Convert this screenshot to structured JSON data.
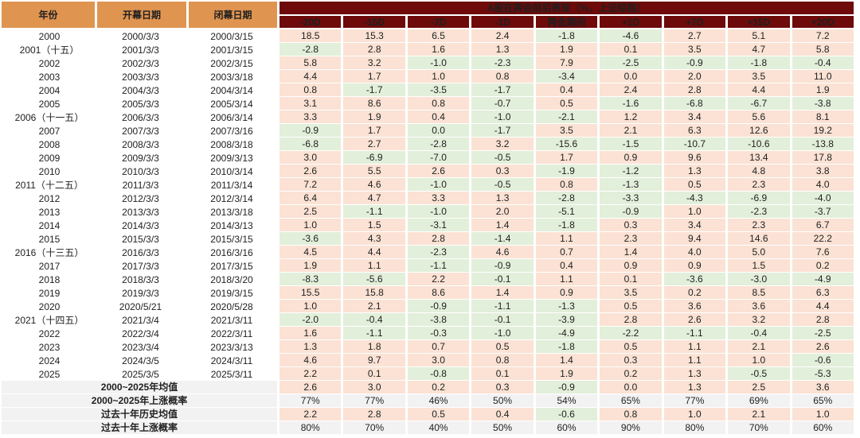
{
  "chart_data": {
    "type": "table",
    "title": "A股在两会前后表现（%，上证综指）",
    "left_columns": [
      "年份",
      "开幕日期",
      "闭幕日期"
    ],
    "period_columns": [
      "-20D",
      "-15D",
      "-7D",
      "-1D",
      "两会期间",
      "+1D",
      "+7D",
      "+15D",
      "+20D"
    ],
    "rows": [
      {
        "year": "2000",
        "open": "2000/3/3",
        "close": "2000/3/15",
        "values": [
          "18.5",
          "15.3",
          "6.5",
          "2.4",
          "-1.8",
          "-4.6",
          "2.7",
          "5.1",
          "7.2"
        ]
      },
      {
        "year": "2001（十五）",
        "open": "2001/3/3",
        "close": "2001/3/15",
        "values": [
          "-2.8",
          "2.8",
          "1.6",
          "1.3",
          "1.9",
          "0.1",
          "3.5",
          "4.7",
          "5.8"
        ]
      },
      {
        "year": "2002",
        "open": "2002/3/3",
        "close": "2002/3/15",
        "values": [
          "5.8",
          "3.2",
          "-1.0",
          "-2.3",
          "7.9",
          "-2.5",
          "-0.9",
          "-1.8",
          "-0.4"
        ]
      },
      {
        "year": "2003",
        "open": "2003/3/3",
        "close": "2003/3/18",
        "values": [
          "4.4",
          "1.7",
          "1.0",
          "0.8",
          "-3.4",
          "0.0",
          "2.0",
          "3.5",
          "11.0"
        ]
      },
      {
        "year": "2004",
        "open": "2004/3/3",
        "close": "2004/3/14",
        "values": [
          "0.8",
          "-1.7",
          "-3.5",
          "-1.7",
          "0.4",
          "2.4",
          "2.8",
          "4.4",
          "1.9"
        ]
      },
      {
        "year": "2005",
        "open": "2005/3/3",
        "close": "2005/3/14",
        "values": [
          "3.1",
          "8.6",
          "0.8",
          "-0.7",
          "0.5",
          "-1.6",
          "-6.8",
          "-6.7",
          "-3.8"
        ]
      },
      {
        "year": "2006（十一五）",
        "open": "2006/3/3",
        "close": "2006/3/14",
        "values": [
          "3.3",
          "1.9",
          "0.4",
          "-1.0",
          "-2.1",
          "1.2",
          "3.4",
          "5.6",
          "8.1"
        ]
      },
      {
        "year": "2007",
        "open": "2007/3/3",
        "close": "2007/3/16",
        "values": [
          "-0.9",
          "1.7",
          "0.0",
          "-1.7",
          "3.5",
          "2.1",
          "6.3",
          "12.6",
          "19.2"
        ]
      },
      {
        "year": "2008",
        "open": "2008/3/3",
        "close": "2008/3/18",
        "values": [
          "-6.8",
          "2.7",
          "-2.8",
          "3.2",
          "-15.6",
          "-1.5",
          "-10.7",
          "-10.6",
          "-13.8"
        ]
      },
      {
        "year": "2009",
        "open": "2009/3/3",
        "close": "2009/3/13",
        "values": [
          "3.0",
          "-6.9",
          "-7.0",
          "-0.5",
          "1.7",
          "0.9",
          "9.6",
          "13.4",
          "17.8"
        ]
      },
      {
        "year": "2010",
        "open": "2010/3/3",
        "close": "2010/3/14",
        "values": [
          "2.6",
          "5.5",
          "2.6",
          "0.3",
          "-1.9",
          "-1.2",
          "1.3",
          "4.8",
          "3.8"
        ]
      },
      {
        "year": "2011（十二五）",
        "open": "2011/3/3",
        "close": "2011/3/14",
        "values": [
          "7.2",
          "4.6",
          "-1.0",
          "-0.5",
          "0.8",
          "-1.3",
          "0.5",
          "2.3",
          "4.0"
        ]
      },
      {
        "year": "2012",
        "open": "2012/3/3",
        "close": "2012/3/14",
        "values": [
          "6.4",
          "4.7",
          "3.3",
          "1.3",
          "-2.8",
          "-3.3",
          "-4.3",
          "-6.9",
          "-4.0"
        ]
      },
      {
        "year": "2013",
        "open": "2013/3/3",
        "close": "2013/3/18",
        "values": [
          "2.5",
          "-1.1",
          "-1.0",
          "2.0",
          "-5.1",
          "-0.9",
          "1.0",
          "-2.3",
          "-3.7"
        ]
      },
      {
        "year": "2014",
        "open": "2014/3/3",
        "close": "2014/3/13",
        "values": [
          "1.0",
          "1.5",
          "-3.1",
          "1.4",
          "-1.8",
          "0.3",
          "3.4",
          "2.3",
          "6.7"
        ]
      },
      {
        "year": "2015",
        "open": "2015/3/3",
        "close": "2015/3/15",
        "values": [
          "-3.6",
          "4.3",
          "2.8",
          "-1.4",
          "1.1",
          "2.3",
          "9.4",
          "14.6",
          "22.2"
        ]
      },
      {
        "year": "2016（十三五）",
        "open": "2016/3/3",
        "close": "2016/3/16",
        "values": [
          "4.5",
          "4.4",
          "-2.3",
          "4.6",
          "0.7",
          "1.4",
          "4.0",
          "5.0",
          "7.6"
        ]
      },
      {
        "year": "2017",
        "open": "2017/3/3",
        "close": "2017/3/15",
        "values": [
          "1.9",
          "1.1",
          "-1.1",
          "-0.9",
          "0.4",
          "0.9",
          "0.9",
          "1.5",
          "0.2"
        ]
      },
      {
        "year": "2018",
        "open": "2018/3/3",
        "close": "2018/3/20",
        "values": [
          "-8.3",
          "-5.6",
          "2.2",
          "-0.1",
          "1.1",
          "0.1",
          "-3.6",
          "-3.0",
          "-4.9"
        ]
      },
      {
        "year": "2019",
        "open": "2019/3/3",
        "close": "2019/3/15",
        "values": [
          "15.5",
          "15.8",
          "8.6",
          "1.4",
          "0.9",
          "3.5",
          "0.2",
          "8.5",
          "6.3"
        ]
      },
      {
        "year": "2020",
        "open": "2020/5/21",
        "close": "2020/5/28",
        "values": [
          "1.0",
          "2.1",
          "-0.9",
          "-1.1",
          "-1.3",
          "0.5",
          "3.6",
          "3.6",
          "4.4"
        ]
      },
      {
        "year": "2021（十四五）",
        "open": "2021/3/4",
        "close": "2021/3/11",
        "values": [
          "-2.0",
          "-0.4",
          "-3.8",
          "-0.1",
          "-3.9",
          "2.8",
          "2.6",
          "3.2",
          "2.8"
        ]
      },
      {
        "year": "2022",
        "open": "2022/3/4",
        "close": "2022/3/11",
        "values": [
          "1.6",
          "-1.1",
          "-0.3",
          "-1.0",
          "-4.9",
          "-2.2",
          "-1.1",
          "-0.4",
          "-2.5"
        ]
      },
      {
        "year": "2023",
        "open": "2023/3/4",
        "close": "2023/3/13",
        "values": [
          "1.3",
          "1.8",
          "0.7",
          "0.5",
          "-1.8",
          "0.5",
          "1.1",
          "2.1",
          "2.6"
        ]
      },
      {
        "year": "2024",
        "open": "2024/3/5",
        "close": "2024/3/11",
        "values": [
          "4.6",
          "9.7",
          "3.0",
          "0.8",
          "1.4",
          "0.3",
          "1.1",
          "1.0",
          "-0.6"
        ]
      },
      {
        "year": "2025",
        "open": "2025/3/5",
        "close": "2025/3/11",
        "values": [
          "2.2",
          "0.1",
          "-0.8",
          "0.1",
          "1.9",
          "0.2",
          "1.3",
          "-0.5",
          "-5.3"
        ]
      }
    ],
    "summary_rows": [
      {
        "label": "2000~2025年均值",
        "kind": "avg",
        "values": [
          "2.6",
          "3.0",
          "0.2",
          "0.3",
          "-0.9",
          "0.0",
          "1.3",
          "2.5",
          "3.6"
        ]
      },
      {
        "label": "2000~2025年上涨概率",
        "kind": "prob",
        "values": [
          "77%",
          "77%",
          "46%",
          "50%",
          "54%",
          "65%",
          "77%",
          "69%",
          "65%"
        ]
      },
      {
        "label": "过去十年历史均值",
        "kind": "avg",
        "values": [
          "2.2",
          "2.8",
          "0.5",
          "0.4",
          "-0.6",
          "0.8",
          "1.0",
          "2.1",
          "1.0"
        ]
      },
      {
        "label": "过去十年上涨概率",
        "kind": "prob",
        "values": [
          "80%",
          "70%",
          "40%",
          "50%",
          "60%",
          "90%",
          "80%",
          "70%",
          "60%"
        ]
      }
    ],
    "cell_color_rule": "negative values light green, non-negative light peach; probability rows light gray",
    "color_overrides": [
      {
        "row_year": "2007",
        "column": "-7D",
        "color": "neg"
      }
    ],
    "colors": {
      "header_dark_red": "#6E0A0A",
      "header_orange": "#DF9450",
      "header_orange_text": "#7B2D0E",
      "positive_cell": "#FBE2D4",
      "negative_cell": "#E2EFDA",
      "summary_gray": "#F2F2F2",
      "text": "#1F1F1F"
    }
  }
}
